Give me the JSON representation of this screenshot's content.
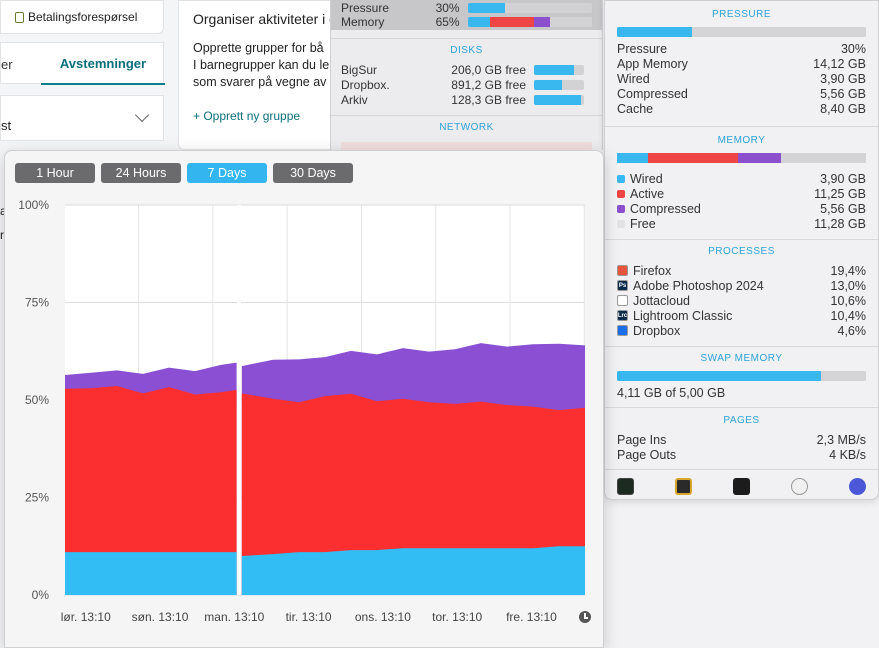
{
  "background": {
    "payment_label": "Betalingsforespørsel",
    "tab_left": "er",
    "tab_votes": "Avstemninger",
    "select_text": "st",
    "main_title": "Organiser aktiviteter i g",
    "main_lines": [
      "Opprette grupper for bå",
      "I barnegrupper kan du le",
      "som svarer på vegne av"
    ],
    "main_link": "+ Opprett ny gruppe",
    "side_letters": [
      "al",
      "r"
    ]
  },
  "top_menu": {
    "pressure": {
      "label": "Pressure",
      "value": "30%",
      "fill": 0.3
    },
    "memory": {
      "label": "Memory",
      "value": "65%",
      "segments": [
        0.18,
        0.53,
        0.66
      ]
    },
    "disks_header": "DISKS",
    "disks": [
      {
        "name": "BigSur",
        "free": "206,0 GB free",
        "fill": 0.8
      },
      {
        "name": "Dropbox.",
        "free": "891,2 GB free",
        "fill": 0.55
      },
      {
        "name": "Arkiv",
        "free": "128,3 GB free",
        "fill": 0.93
      }
    ],
    "network_header": "NETWORK"
  },
  "panel": {
    "pressure_header": "PRESSURE",
    "pressure_fill": 0.3,
    "pressure_rows": [
      {
        "label": "Pressure",
        "value": "30%"
      },
      {
        "label": "App Memory",
        "value": "14,12 GB"
      },
      {
        "label": "Wired",
        "value": "3,90 GB"
      },
      {
        "label": "Compressed",
        "value": "5,56 GB"
      },
      {
        "label": "Cache",
        "value": "8,40 GB"
      }
    ],
    "memory_header": "MEMORY",
    "memory_segments": [
      {
        "color": "#39b7ef",
        "fill": 0.125
      },
      {
        "color": "#ef4545",
        "fill": 0.36
      },
      {
        "color": "#8c50cf",
        "fill": 0.175
      },
      {
        "color": "#d4d4d6",
        "fill": 0.34
      }
    ],
    "memory_rows": [
      {
        "label": "Wired",
        "value": "3,90 GB",
        "color": "#39b7ef"
      },
      {
        "label": "Active",
        "value": "11,25 GB",
        "color": "#ef4545"
      },
      {
        "label": "Compressed",
        "value": "5,56 GB",
        "color": "#8c50cf"
      },
      {
        "label": "Free",
        "value": "11,28 GB",
        "color": "#e2e2e4"
      }
    ],
    "processes_header": "PROCESSES",
    "processes": [
      {
        "name": "Firefox",
        "value": "19,4%",
        "icon": "firefox-icon",
        "color": "#e8553a",
        "glyph": ""
      },
      {
        "name": "Adobe Photoshop 2024",
        "value": "13,0%",
        "icon": "photoshop-icon",
        "color": "#0b2a4a",
        "glyph": "Ps"
      },
      {
        "name": "Jottacloud",
        "value": "10,6%",
        "icon": "jottacloud-icon",
        "color": "#ffffff",
        "glyph": ""
      },
      {
        "name": "Lightroom Classic",
        "value": "10,4%",
        "icon": "lightroom-icon",
        "color": "#0b2a4a",
        "glyph": "Lrc"
      },
      {
        "name": "Dropbox",
        "value": "4,6%",
        "icon": "dropbox-icon",
        "color": "#1a6fe8",
        "glyph": ""
      }
    ],
    "swap_header": "SWAP MEMORY",
    "swap_fill": 0.82,
    "swap_text": "4,11 GB of 5,00 GB",
    "pages_header": "PAGES",
    "pages_rows": [
      {
        "label": "Page Ins",
        "value": "2,3 MB/s"
      },
      {
        "label": "Page Outs",
        "value": "4 KB/s"
      }
    ]
  },
  "chart_window": {
    "buttons": [
      {
        "label": "1 Hour",
        "active": false
      },
      {
        "label": "24 Hours",
        "active": false
      },
      {
        "label": "7 Days",
        "active": true
      },
      {
        "label": "30 Days",
        "active": false
      }
    ]
  },
  "chart_data": {
    "type": "area",
    "stacked": true,
    "ylim": [
      0,
      100
    ],
    "yticks": [
      "0%",
      "25%",
      "50%",
      "75%",
      "100%"
    ],
    "xticks": [
      "lør. 13:10",
      "søn. 13:10",
      "man. 13:10",
      "tir. 13:10",
      "ons. 13:10",
      "tor. 13:10",
      "fre. 13:10"
    ],
    "grid": true,
    "gap_at": 0.33,
    "colors": {
      "wired": "#33bdf5",
      "active": "#fb2f2f",
      "compressed": "#8a4fd3"
    },
    "x": [
      0,
      0.05,
      0.1,
      0.15,
      0.2,
      0.25,
      0.3,
      0.33,
      0.34,
      0.4,
      0.45,
      0.5,
      0.55,
      0.6,
      0.65,
      0.7,
      0.75,
      0.8,
      0.85,
      0.9,
      0.95,
      1.0
    ],
    "series": [
      {
        "key": "wired",
        "values": [
          11,
          11,
          11,
          11,
          11,
          11,
          11,
          11,
          10,
          10.5,
          11,
          11,
          11.5,
          11.5,
          12,
          12,
          12,
          12,
          12,
          12,
          12.5,
          12.5
        ]
      },
      {
        "key": "active",
        "values": [
          53.5,
          53,
          53,
          52,
          53,
          52,
          52,
          52,
          52,
          50,
          50,
          51,
          51,
          50,
          50,
          50,
          49,
          49,
          49,
          48,
          48,
          48
        ]
      },
      {
        "key": "compressed",
        "values": [
          57,
          57,
          57,
          57,
          58,
          58,
          59,
          59,
          59,
          60,
          61,
          61,
          62,
          62,
          63,
          63,
          63,
          64,
          64,
          64,
          65,
          64
        ]
      }
    ]
  }
}
